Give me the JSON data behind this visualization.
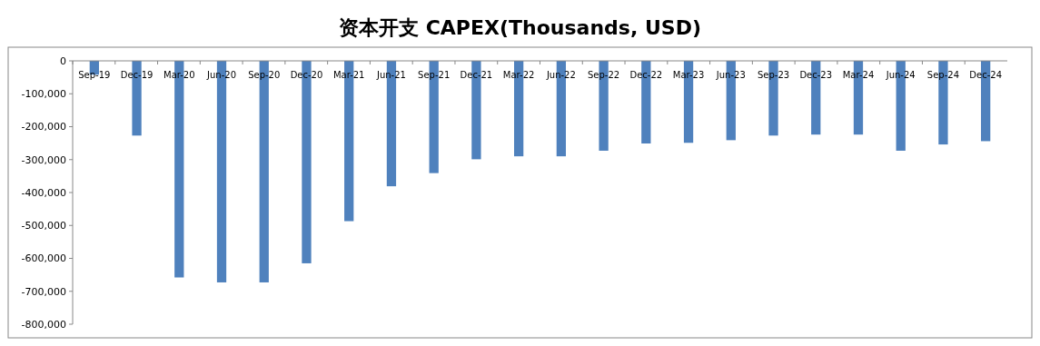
{
  "chart_data": {
    "type": "bar",
    "title": "资本开支 CAPEX(Thousands, USD)",
    "categories": [
      "Sep-19",
      "Dec-19",
      "Mar-20",
      "Jun-20",
      "Sep-20",
      "Dec-20",
      "Mar-21",
      "Jun-21",
      "Sep-21",
      "Dec-21",
      "Mar-22",
      "Jun-22",
      "Sep-22",
      "Dec-22",
      "Mar-23",
      "Jun-23",
      "Sep-23",
      "Dec-23",
      "Mar-24",
      "Jun-24",
      "Sep-24",
      "Dec-24"
    ],
    "values": [
      -42000,
      -227000,
      -658000,
      -673000,
      -673000,
      -615000,
      -487000,
      -381000,
      -341000,
      -299000,
      -290000,
      -290000,
      -273000,
      -251000,
      -249000,
      -241000,
      -227000,
      -224000,
      -224000,
      -273000,
      -254000,
      -244000
    ],
    "color": "#4f81bd",
    "ylim": [
      -800000,
      0
    ],
    "yticks": [
      {
        "value": -800000,
        "label": "-800,000"
      },
      {
        "value": -700000,
        "label": "-700,000"
      },
      {
        "value": -600000,
        "label": "-600,000"
      },
      {
        "value": -500000,
        "label": "-500,000"
      },
      {
        "value": -400000,
        "label": "-400,000"
      },
      {
        "value": -300000,
        "label": "-300,000"
      },
      {
        "value": -200000,
        "label": "-200,000"
      },
      {
        "value": -100000,
        "label": "-100,000"
      },
      {
        "value": 0,
        "label": "0"
      }
    ],
    "grid": false
  }
}
